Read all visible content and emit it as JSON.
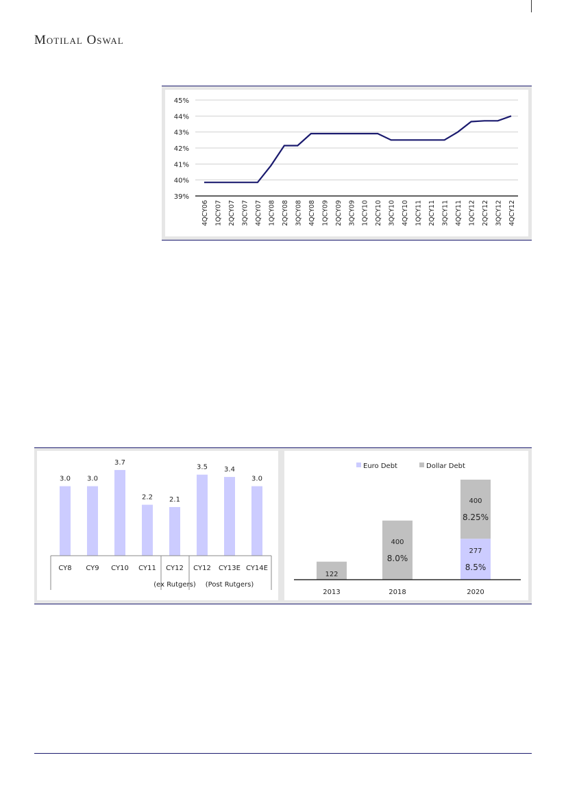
{
  "header": {
    "brand": "Motilal Oswal"
  },
  "chart_data": [
    {
      "type": "line",
      "title": "",
      "ylabel": "",
      "xlabel": "",
      "ylim": [
        39,
        45
      ],
      "yticks": [
        "39%",
        "40%",
        "41%",
        "42%",
        "43%",
        "44%",
        "45%"
      ],
      "categories": [
        "4QCY06",
        "1QCY07",
        "2QCY07",
        "3QCY07",
        "4QCY07",
        "1QCY08",
        "2QCY08",
        "3QCY08",
        "4QCY08",
        "1QCY09",
        "2QCY09",
        "3QCY09",
        "1QCY10",
        "2QCY10",
        "3QCY10",
        "4QCY10",
        "1QCY11",
        "2QCY11",
        "3QCY11",
        "4QCY11",
        "1QCY12",
        "2QCY12",
        "3QCY12",
        "4QCY12"
      ],
      "values": [
        39.85,
        39.85,
        39.85,
        39.85,
        39.85,
        40.9,
        42.15,
        42.15,
        42.9,
        42.9,
        42.9,
        42.9,
        42.9,
        42.9,
        42.5,
        42.5,
        42.5,
        42.5,
        42.5,
        43.0,
        43.65,
        43.7,
        43.7,
        44.0
      ],
      "color": "#1a1a6e",
      "grid": true
    },
    {
      "type": "bar",
      "categories": [
        "CY8",
        "CY9",
        "CY10",
        "CY11",
        "CY12",
        "CY12",
        "CY13E",
        "CY14E"
      ],
      "values": [
        3.0,
        3.0,
        3.7,
        2.2,
        2.1,
        3.5,
        3.4,
        3.0
      ],
      "value_labels": [
        "3.0",
        "3.0",
        "3.7",
        "2.2",
        "2.1",
        "3.5",
        "3.4",
        "3.0"
      ],
      "group_labels": [
        "(ex Rutgers)",
        "(Post Rutgers)"
      ],
      "color": "#ccccff"
    },
    {
      "type": "bar",
      "stacked": true,
      "categories": [
        "2013",
        "2018",
        "2020"
      ],
      "series": [
        {
          "name": "Euro Debt",
          "values": [
            0,
            0,
            277
          ],
          "color": "#ccccff",
          "labels": [
            "",
            "",
            "277"
          ],
          "rates": [
            "",
            "",
            "8.5%"
          ]
        },
        {
          "name": "Dollar Debt",
          "values": [
            122,
            400,
            400
          ],
          "color": "#c0c0c0",
          "labels": [
            "122",
            "400",
            "400"
          ],
          "rates": [
            "",
            "8.0%",
            "8.25%"
          ]
        }
      ],
      "legend": "top"
    }
  ]
}
